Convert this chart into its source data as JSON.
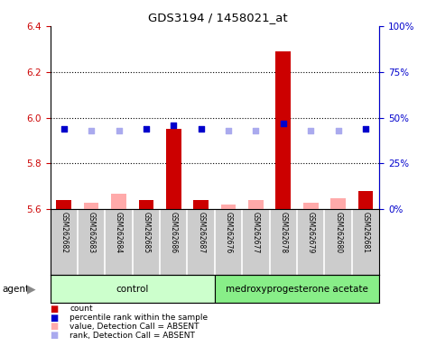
{
  "title": "GDS3194 / 1458021_at",
  "samples": [
    "GSM262682",
    "GSM262683",
    "GSM262684",
    "GSM262685",
    "GSM262686",
    "GSM262687",
    "GSM262676",
    "GSM262677",
    "GSM262678",
    "GSM262679",
    "GSM262680",
    "GSM262681"
  ],
  "value_present": [
    5.64,
    null,
    null,
    5.64,
    5.95,
    5.64,
    null,
    null,
    6.29,
    null,
    null,
    5.68
  ],
  "value_absent": [
    null,
    5.63,
    5.67,
    null,
    null,
    null,
    5.62,
    5.64,
    null,
    5.63,
    5.65,
    null
  ],
  "percentile_present": [
    44,
    null,
    null,
    44,
    46,
    44,
    null,
    null,
    47,
    null,
    null,
    44
  ],
  "percentile_absent": [
    null,
    43,
    43,
    null,
    null,
    null,
    43,
    43,
    null,
    43,
    43,
    null
  ],
  "ylim_left": [
    5.6,
    6.4
  ],
  "ylim_right": [
    0,
    100
  ],
  "yticks_left": [
    5.6,
    5.8,
    6.0,
    6.2,
    6.4
  ],
  "yticks_right": [
    0,
    25,
    50,
    75,
    100
  ],
  "ytick_labels_right": [
    "0%",
    "25%",
    "50%",
    "75%",
    "100%"
  ],
  "bar_color_present": "#cc0000",
  "bar_color_absent": "#ffaaaa",
  "rank_color_present": "#0000cc",
  "rank_color_absent": "#aaaaee",
  "axis_color_left": "#cc0000",
  "axis_color_right": "#0000cc",
  "bg_color": "#cccccc",
  "control_color": "#ccffcc",
  "treatment_color": "#88ee88",
  "legend_items": [
    {
      "label": "count",
      "color": "#cc0000"
    },
    {
      "label": "percentile rank within the sample",
      "color": "#0000cc"
    },
    {
      "label": "value, Detection Call = ABSENT",
      "color": "#ffaaaa"
    },
    {
      "label": "rank, Detection Call = ABSENT",
      "color": "#aaaaee"
    }
  ],
  "n_control": 6,
  "n_treatment": 6
}
